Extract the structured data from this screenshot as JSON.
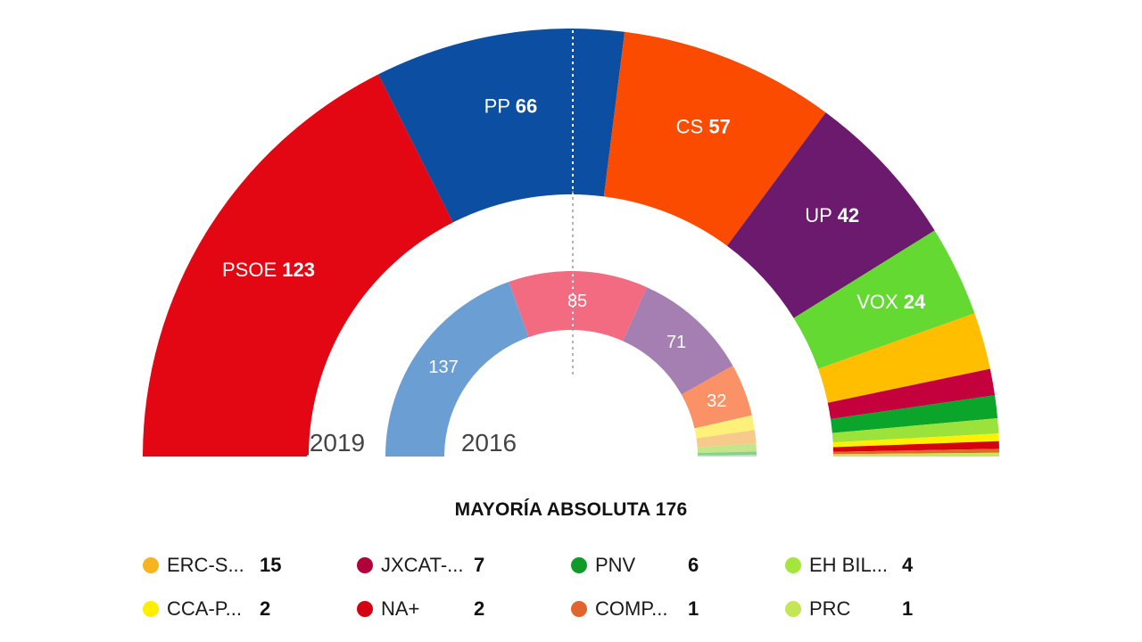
{
  "majority": {
    "label": "MAYORÍA ABSOLUTA",
    "value": "176"
  },
  "chart_data": {
    "type": "hemicycle",
    "total_seats": 350,
    "rings": [
      {
        "year": "2019",
        "series": [
          {
            "name": "PSOE",
            "value": 123,
            "color": "#e30613",
            "label": true
          },
          {
            "name": "PP",
            "value": 66,
            "color": "#0b4ea2",
            "label": true
          },
          {
            "name": "CS",
            "value": 57,
            "color": "#fa4b00",
            "label": true
          },
          {
            "name": "UP",
            "value": 42,
            "color": "#6b1a6e",
            "label": true
          },
          {
            "name": "VOX",
            "value": 24,
            "color": "#63d932",
            "label": true
          },
          {
            "name": "ERC-S...",
            "value": 15,
            "color": "#ffbf00",
            "label": false
          },
          {
            "name": "JXCAT-...",
            "value": 7,
            "color": "#c4003d",
            "label": false
          },
          {
            "name": "PNV",
            "value": 6,
            "color": "#0aa52a",
            "label": false
          },
          {
            "name": "EH BIL...",
            "value": 4,
            "color": "#9be23b",
            "label": false
          },
          {
            "name": "CCA-P...",
            "value": 2,
            "color": "#fff000",
            "label": false
          },
          {
            "name": "NA+",
            "value": 2,
            "color": "#d7000f",
            "label": false
          },
          {
            "name": "COMP...",
            "value": 1,
            "color": "#e2682a",
            "label": false
          },
          {
            "name": "PRC",
            "value": 1,
            "color": "#c8e65a",
            "label": false
          }
        ]
      },
      {
        "year": "2016",
        "series": [
          {
            "value": 137,
            "color": "#6b9fd4",
            "label": true
          },
          {
            "value": 85,
            "color": "#f26b80",
            "label": true
          },
          {
            "value": 71,
            "color": "#a57fb1",
            "label": true
          },
          {
            "value": 32,
            "color": "#fb9166",
            "label": true
          },
          {
            "value": 9,
            "color": "#fff07a",
            "label": false
          },
          {
            "value": 8,
            "color": "#f7c98a",
            "label": false
          },
          {
            "value": 5,
            "color": "#c4e58a",
            "label": false
          },
          {
            "value": 2,
            "color": "#7fd38d",
            "label": false
          },
          {
            "value": 1,
            "color": "#b8e6c3",
            "label": false
          }
        ]
      }
    ]
  },
  "legend": [
    {
      "name": "ERC-S...",
      "seats": "15",
      "color": "#f7b41f"
    },
    {
      "name": "JXCAT-...",
      "seats": "7",
      "color": "#b3003b"
    },
    {
      "name": "PNV",
      "seats": "6",
      "color": "#0f9b2a"
    },
    {
      "name": "EH BIL...",
      "seats": "4",
      "color": "#a3e63c"
    },
    {
      "name": "CCA-P...",
      "seats": "2",
      "color": "#ffee00"
    },
    {
      "name": "NA+",
      "seats": "2",
      "color": "#d50012"
    },
    {
      "name": "COMP...",
      "seats": "1",
      "color": "#e0642c"
    },
    {
      "name": "PRC",
      "seats": "1",
      "color": "#c5e654"
    }
  ]
}
